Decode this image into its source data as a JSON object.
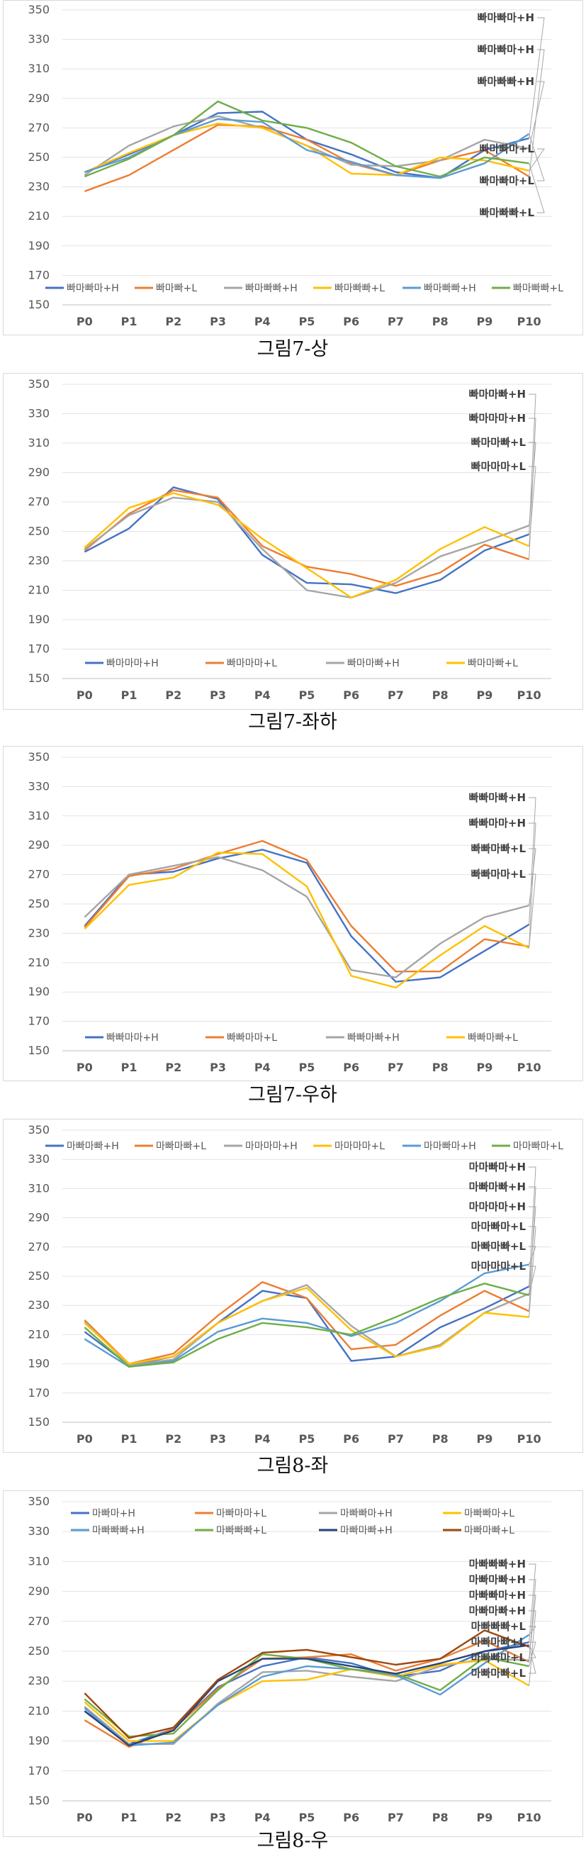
{
  "chart_data": [
    {
      "type": "line",
      "caption": "그림7-상",
      "x": [
        "P0",
        "P1",
        "P2",
        "P3",
        "P4",
        "P5",
        "P6",
        "P7",
        "P8",
        "P9",
        "P10"
      ],
      "ylim": [
        150,
        350
      ],
      "yticks": [
        150,
        170,
        190,
        210,
        230,
        250,
        270,
        290,
        310,
        330,
        350
      ],
      "grid": true,
      "legend_position": "bottom",
      "series": [
        {
          "name": "빠마빠마+H",
          "color": "#4472C4",
          "values": [
            240,
            252,
            265,
            280,
            281,
            262,
            252,
            240,
            236,
            255,
            263
          ]
        },
        {
          "name": "빠마빠+L",
          "color": "#ED7D31",
          "values": [
            227,
            238,
            255,
            272,
            271,
            262,
            246,
            238,
            248,
            255,
            237
          ]
        },
        {
          "name": "빠마빠빠+H",
          "color": "#A5A5A5",
          "values": [
            238,
            258,
            271,
            278,
            270,
            258,
            245,
            244,
            248,
            262,
            256
          ]
        },
        {
          "name": "빠마빠빠+L",
          "color": "#FFC000",
          "values": [
            240,
            253,
            265,
            273,
            270,
            258,
            239,
            238,
            250,
            248,
            241
          ]
        },
        {
          "name": "빠마빠빠+H",
          "color": "#5B9BD5",
          "values": [
            240,
            250,
            265,
            276,
            274,
            255,
            247,
            238,
            236,
            246,
            266
          ]
        },
        {
          "name": "빠마빠빠+L",
          "color": "#70AD47",
          "values": [
            237,
            249,
            265,
            288,
            275,
            270,
            260,
            244,
            237,
            250,
            246
          ]
        }
      ],
      "annotations": {
        "high": [
          "빠마빠마+H",
          "빠마빠마+H",
          "빠마빠빠+H"
        ],
        "low": [
          "빠마빠마+L",
          "빠마빠마+L",
          "빠마빠빠+L"
        ]
      }
    },
    {
      "type": "line",
      "caption": "그림7-좌하",
      "x": [
        "P0",
        "P1",
        "P2",
        "P3",
        "P4",
        "P5",
        "P6",
        "P7",
        "P8",
        "P9",
        "P10"
      ],
      "ylim": [
        150,
        350
      ],
      "yticks": [
        150,
        170,
        190,
        210,
        230,
        250,
        270,
        290,
        310,
        330,
        350
      ],
      "grid": true,
      "legend_position": "bottom",
      "series": [
        {
          "name": "빠마마마+H",
          "color": "#4472C4",
          "values": [
            236,
            252,
            280,
            272,
            234,
            215,
            214,
            208,
            217,
            237,
            248
          ]
        },
        {
          "name": "빠마마마+L",
          "color": "#ED7D31",
          "values": [
            237,
            262,
            278,
            273,
            240,
            226,
            221,
            213,
            222,
            241,
            231
          ]
        },
        {
          "name": "빠마마빠+H",
          "color": "#A5A5A5",
          "values": [
            238,
            261,
            273,
            270,
            238,
            210,
            205,
            215,
            233,
            243,
            254
          ]
        },
        {
          "name": "빠마마빠+L",
          "color": "#FFC000",
          "values": [
            239,
            266,
            276,
            268,
            245,
            225,
            205,
            217,
            238,
            253,
            240
          ]
        }
      ],
      "annotations": {
        "high": [
          "빠마마빠+H",
          "빠마마마+H"
        ],
        "low": [
          "빠마마빠+L",
          "빠마마마+L"
        ]
      }
    },
    {
      "type": "line",
      "caption": "그림7-우하",
      "x": [
        "P0",
        "P1",
        "P2",
        "P3",
        "P4",
        "P5",
        "P6",
        "P7",
        "P8",
        "P9",
        "P10"
      ],
      "ylim": [
        150,
        350
      ],
      "yticks": [
        150,
        170,
        190,
        210,
        230,
        250,
        270,
        290,
        310,
        330,
        350
      ],
      "grid": true,
      "legend_position": "bottom",
      "series": [
        {
          "name": "빠빠마마+H",
          "color": "#4472C4",
          "values": [
            235,
            270,
            272,
            281,
            287,
            278,
            228,
            197,
            200,
            218,
            236
          ]
        },
        {
          "name": "빠빠마마+L",
          "color": "#ED7D31",
          "values": [
            234,
            269,
            274,
            284,
            293,
            280,
            235,
            204,
            204,
            226,
            221
          ]
        },
        {
          "name": "빠빠마빠+H",
          "color": "#A5A5A5",
          "values": [
            241,
            270,
            276,
            282,
            273,
            255,
            205,
            200,
            223,
            241,
            249
          ]
        },
        {
          "name": "빠빠마빠+L",
          "color": "#FFC000",
          "values": [
            233,
            263,
            268,
            285,
            284,
            262,
            201,
            193,
            215,
            235,
            220
          ]
        }
      ],
      "annotations": {
        "high": [
          "빠빠마빠+H",
          "빠빠마마+H"
        ],
        "low": [
          "빠빠마빠+L",
          "빠빠마마+L"
        ]
      }
    },
    {
      "type": "line",
      "caption": "그림8-좌",
      "x": [
        "P0",
        "P1",
        "P2",
        "P3",
        "P4",
        "P5",
        "P6",
        "P7",
        "P8",
        "P9",
        "P10"
      ],
      "ylim": [
        150,
        350
      ],
      "yticks": [
        150,
        170,
        190,
        210,
        230,
        250,
        270,
        290,
        310,
        330,
        350
      ],
      "grid": true,
      "legend_position": "top",
      "series": [
        {
          "name": "마빠마빠+H",
          "color": "#4472C4",
          "values": [
            212,
            189,
            195,
            218,
            240,
            235,
            192,
            195,
            215,
            228,
            243
          ]
        },
        {
          "name": "마빠마빠+L",
          "color": "#ED7D31",
          "values": [
            220,
            190,
            197,
            223,
            246,
            235,
            200,
            203,
            223,
            240,
            226
          ]
        },
        {
          "name": "마마마마+H",
          "color": "#A5A5A5",
          "values": [
            219,
            189,
            193,
            218,
            233,
            244,
            216,
            195,
            203,
            225,
            238
          ]
        },
        {
          "name": "마마마마+L",
          "color": "#FFC000",
          "values": [
            218,
            190,
            195,
            218,
            233,
            242,
            213,
            195,
            202,
            225,
            222
          ]
        },
        {
          "name": "마마빠마+H",
          "color": "#5B9BD5",
          "values": [
            207,
            188,
            192,
            212,
            221,
            218,
            209,
            218,
            233,
            252,
            258
          ]
        },
        {
          "name": "마마빠마+L",
          "color": "#70AD47",
          "values": [
            215,
            188,
            191,
            207,
            218,
            215,
            210,
            222,
            235,
            245,
            237
          ]
        }
      ],
      "annotations": {
        "high": [
          "마마빠마+H",
          "마빠마빠+H",
          "마마마마+H"
        ],
        "low": [
          "마마빠마+L",
          "마빠마빠+L",
          "마마마마+L"
        ]
      }
    },
    {
      "type": "line",
      "caption": "그림8-우",
      "x": [
        "P0",
        "P1",
        "P2",
        "P3",
        "P4",
        "P5",
        "P6",
        "P7",
        "P8",
        "P9",
        "P10"
      ],
      "ylim": [
        150,
        350
      ],
      "yticks": [
        150,
        170,
        190,
        210,
        230,
        250,
        270,
        290,
        310,
        330,
        350
      ],
      "grid": true,
      "legend_position": "top",
      "series": [
        {
          "name": "마빠마+H",
          "color": "#4472C4",
          "values": [
            210,
            188,
            198,
            226,
            240,
            246,
            242,
            233,
            237,
            250,
            256
          ]
        },
        {
          "name": "마빠마마+L",
          "color": "#ED7D31",
          "values": [
            204,
            186,
            198,
            225,
            245,
            246,
            248,
            237,
            245,
            257,
            243
          ]
        },
        {
          "name": "마빠빠마+H",
          "color": "#A5A5A5",
          "values": [
            213,
            188,
            188,
            215,
            236,
            237,
            233,
            230,
            240,
            245,
            244
          ]
        },
        {
          "name": "마빠빠마+L",
          "color": "#FFC000",
          "values": [
            216,
            190,
            190,
            214,
            230,
            231,
            238,
            233,
            241,
            244,
            227
          ]
        },
        {
          "name": "마빠빠빠+H",
          "color": "#5B9BD5",
          "values": [
            212,
            187,
            189,
            214,
            233,
            240,
            238,
            234,
            221,
            242,
            261
          ]
        },
        {
          "name": "마빠빠빠+L",
          "color": "#70AD47",
          "values": [
            218,
            193,
            195,
            224,
            248,
            245,
            238,
            235,
            224,
            246,
            240
          ]
        },
        {
          "name": "마빠마빠+H",
          "color": "#264478",
          "values": [
            210,
            187,
            197,
            230,
            245,
            245,
            240,
            235,
            242,
            250,
            254
          ]
        },
        {
          "name": "마빠마빠+L",
          "color": "#9E480E",
          "values": [
            222,
            192,
            199,
            231,
            249,
            251,
            246,
            241,
            245,
            264,
            253
          ]
        }
      ],
      "annotations": {
        "high": [
          "마빠빠빠+H",
          "마빠마빠+H",
          "마빠빠마+H",
          "마빠마빠+H"
        ],
        "low": [
          "마빠빠빠+L",
          "마빠마빠+L",
          "마빠빠마+L",
          "마빠마빠+L"
        ]
      }
    }
  ]
}
